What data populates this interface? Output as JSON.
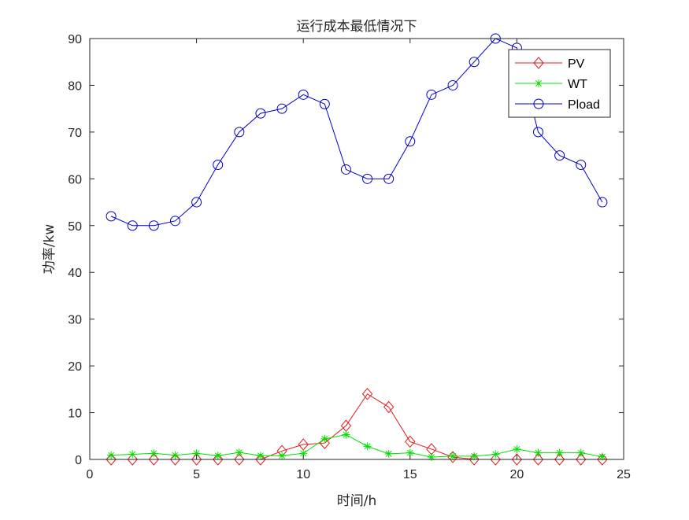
{
  "chart_data": {
    "type": "line",
    "title": "运行成本最低情况下",
    "xlabel": "时间/h",
    "ylabel": "功率/kw",
    "xlim": [
      0,
      25
    ],
    "ylim": [
      0,
      90
    ],
    "xticks": [
      "0",
      "5",
      "10",
      "15",
      "20",
      "25"
    ],
    "yticks": [
      "0",
      "10",
      "20",
      "30",
      "40",
      "50",
      "60",
      "70",
      "80",
      "90"
    ],
    "x": [
      1,
      2,
      3,
      4,
      5,
      6,
      7,
      8,
      9,
      10,
      11,
      12,
      13,
      14,
      15,
      16,
      17,
      18,
      19,
      20,
      21,
      22,
      23,
      24
    ],
    "series": [
      {
        "name": "PV",
        "color": "#e31a1c",
        "marker": "diamond",
        "values": [
          0,
          0,
          0,
          0,
          0,
          0,
          0,
          0,
          1.8,
          3.2,
          3.5,
          7.2,
          14,
          11.2,
          3.8,
          2.2,
          0.5,
          0,
          0,
          0,
          0,
          0,
          0,
          0
        ]
      },
      {
        "name": "WT",
        "color": "#00e000",
        "marker": "asterisk",
        "values": [
          0.9,
          1.1,
          1.3,
          0.9,
          1.3,
          0.8,
          1.5,
          0.8,
          0.8,
          1.3,
          4.4,
          5.3,
          2.8,
          1.2,
          1.4,
          0.5,
          0.7,
          0.7,
          1.1,
          2.2,
          1.4,
          1.4,
          1.4,
          0.6
        ]
      },
      {
        "name": "Pload",
        "color": "#0000cc",
        "marker": "circle",
        "values": [
          52,
          50,
          50,
          51,
          55,
          63,
          70,
          74,
          75,
          78,
          76,
          62,
          60,
          60,
          68,
          78,
          80,
          85,
          90,
          88,
          70,
          65,
          63,
          55
        ]
      }
    ],
    "legend": "top-right",
    "grid": false
  }
}
